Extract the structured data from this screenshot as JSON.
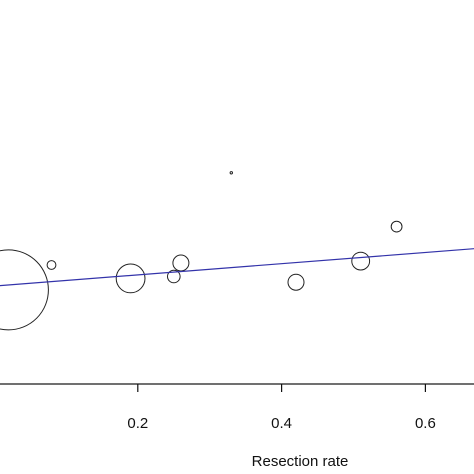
{
  "chart_data": {
    "type": "scatter",
    "title": "",
    "xlabel": "Resection rate",
    "ylabel": "",
    "xlim": [
      0.0,
      0.72
    ],
    "ylim": [
      0.0,
      1.0
    ],
    "grid": false,
    "x_ticks": [
      0.2,
      0.4,
      0.6
    ],
    "x_tick_labels": [
      "0.2",
      "0.4",
      "0.6"
    ],
    "points": [
      {
        "x": 0.02,
        "y": 0.245,
        "weight": 1.0
      },
      {
        "x": 0.08,
        "y": 0.31,
        "weight": 0.012
      },
      {
        "x": 0.19,
        "y": 0.275,
        "weight": 0.13
      },
      {
        "x": 0.25,
        "y": 0.28,
        "weight": 0.025
      },
      {
        "x": 0.26,
        "y": 0.315,
        "weight": 0.04
      },
      {
        "x": 0.33,
        "y": 0.55,
        "weight": 0.0005
      },
      {
        "x": 0.42,
        "y": 0.265,
        "weight": 0.04
      },
      {
        "x": 0.51,
        "y": 0.32,
        "weight": 0.05
      },
      {
        "x": 0.56,
        "y": 0.41,
        "weight": 0.018
      }
    ],
    "fit_line": {
      "x": [
        0.0,
        0.72
      ],
      "y": [
        0.255,
        0.36
      ],
      "color": "#3333aa"
    },
    "point_color": "#222222"
  }
}
